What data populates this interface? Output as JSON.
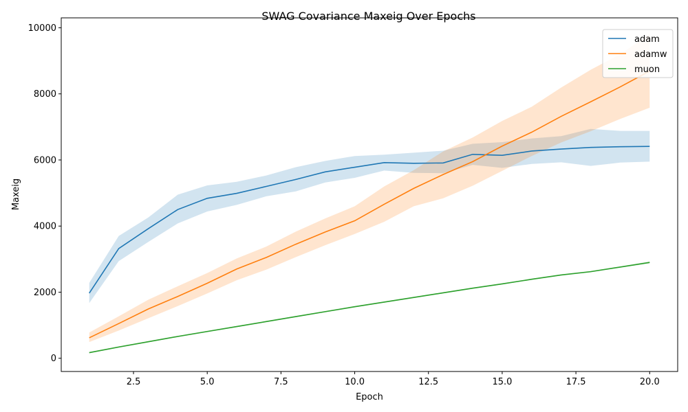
{
  "chart_data": {
    "type": "line",
    "title": "SWAG Covariance Maxeig Over Epochs",
    "xlabel": "Epoch",
    "ylabel": "Maxeig",
    "xlim": [
      0.05,
      20.95
    ],
    "ylim": [
      -400,
      10300
    ],
    "xticks": [
      2.5,
      5.0,
      7.5,
      10.0,
      12.5,
      15.0,
      17.5,
      20.0
    ],
    "xtick_labels": [
      "2.5",
      "5.0",
      "7.5",
      "10.0",
      "12.5",
      "15.0",
      "17.5",
      "20.0"
    ],
    "yticks": [
      0,
      2000,
      4000,
      6000,
      8000,
      10000
    ],
    "ytick_labels": [
      "0",
      "2000",
      "4000",
      "6000",
      "8000",
      "10000"
    ],
    "grid": false,
    "legend_position": "top-right",
    "x": [
      1,
      2,
      3,
      4,
      5,
      6,
      7,
      8,
      9,
      10,
      11,
      12,
      13,
      14,
      15,
      16,
      17,
      18,
      19,
      20
    ],
    "series": [
      {
        "name": "adam",
        "color": "#1f77b4",
        "values": [
          1970,
          3320,
          3920,
          4500,
          4840,
          4990,
          5200,
          5410,
          5640,
          5780,
          5920,
          5900,
          5910,
          6170,
          6140,
          6270,
          6330,
          6380,
          6400,
          6410
        ],
        "lower": [
          1670,
          2940,
          3520,
          4080,
          4440,
          4640,
          4900,
          5050,
          5320,
          5460,
          5680,
          5610,
          5600,
          5850,
          5760,
          5880,
          5930,
          5820,
          5920,
          5950
        ],
        "upper": [
          2280,
          3700,
          4260,
          4950,
          5230,
          5340,
          5530,
          5780,
          5970,
          6120,
          6160,
          6220,
          6280,
          6490,
          6540,
          6650,
          6720,
          6940,
          6880,
          6880
        ]
      },
      {
        "name": "adamw",
        "color": "#ff7f0e",
        "values": [
          620,
          1050,
          1490,
          1870,
          2270,
          2700,
          3050,
          3450,
          3820,
          4160,
          4660,
          5140,
          5560,
          5950,
          6420,
          6840,
          7320,
          7760,
          8210,
          8690
        ],
        "lower": [
          490,
          840,
          1210,
          1580,
          1960,
          2360,
          2680,
          3060,
          3420,
          3760,
          4130,
          4600,
          4840,
          5220,
          5670,
          6120,
          6530,
          6870,
          7240,
          7580
        ],
        "upper": [
          780,
          1270,
          1770,
          2180,
          2580,
          3020,
          3380,
          3830,
          4230,
          4600,
          5200,
          5690,
          6260,
          6680,
          7180,
          7610,
          8190,
          8730,
          9200,
          9810
        ]
      },
      {
        "name": "muon",
        "color": "#2ca02c",
        "values": [
          170,
          340,
          500,
          660,
          810,
          960,
          1110,
          1260,
          1410,
          1560,
          1700,
          1840,
          1980,
          2120,
          2250,
          2390,
          2520,
          2620,
          2760,
          2900
        ],
        "lower": [
          150,
          320,
          480,
          640,
          790,
          940,
          1090,
          1240,
          1390,
          1540,
          1680,
          1820,
          1960,
          2100,
          2230,
          2370,
          2500,
          2600,
          2740,
          2870
        ],
        "upper": [
          190,
          360,
          520,
          680,
          830,
          980,
          1130,
          1280,
          1430,
          1580,
          1720,
          1860,
          2000,
          2140,
          2270,
          2410,
          2540,
          2640,
          2780,
          2930
        ]
      }
    ]
  }
}
